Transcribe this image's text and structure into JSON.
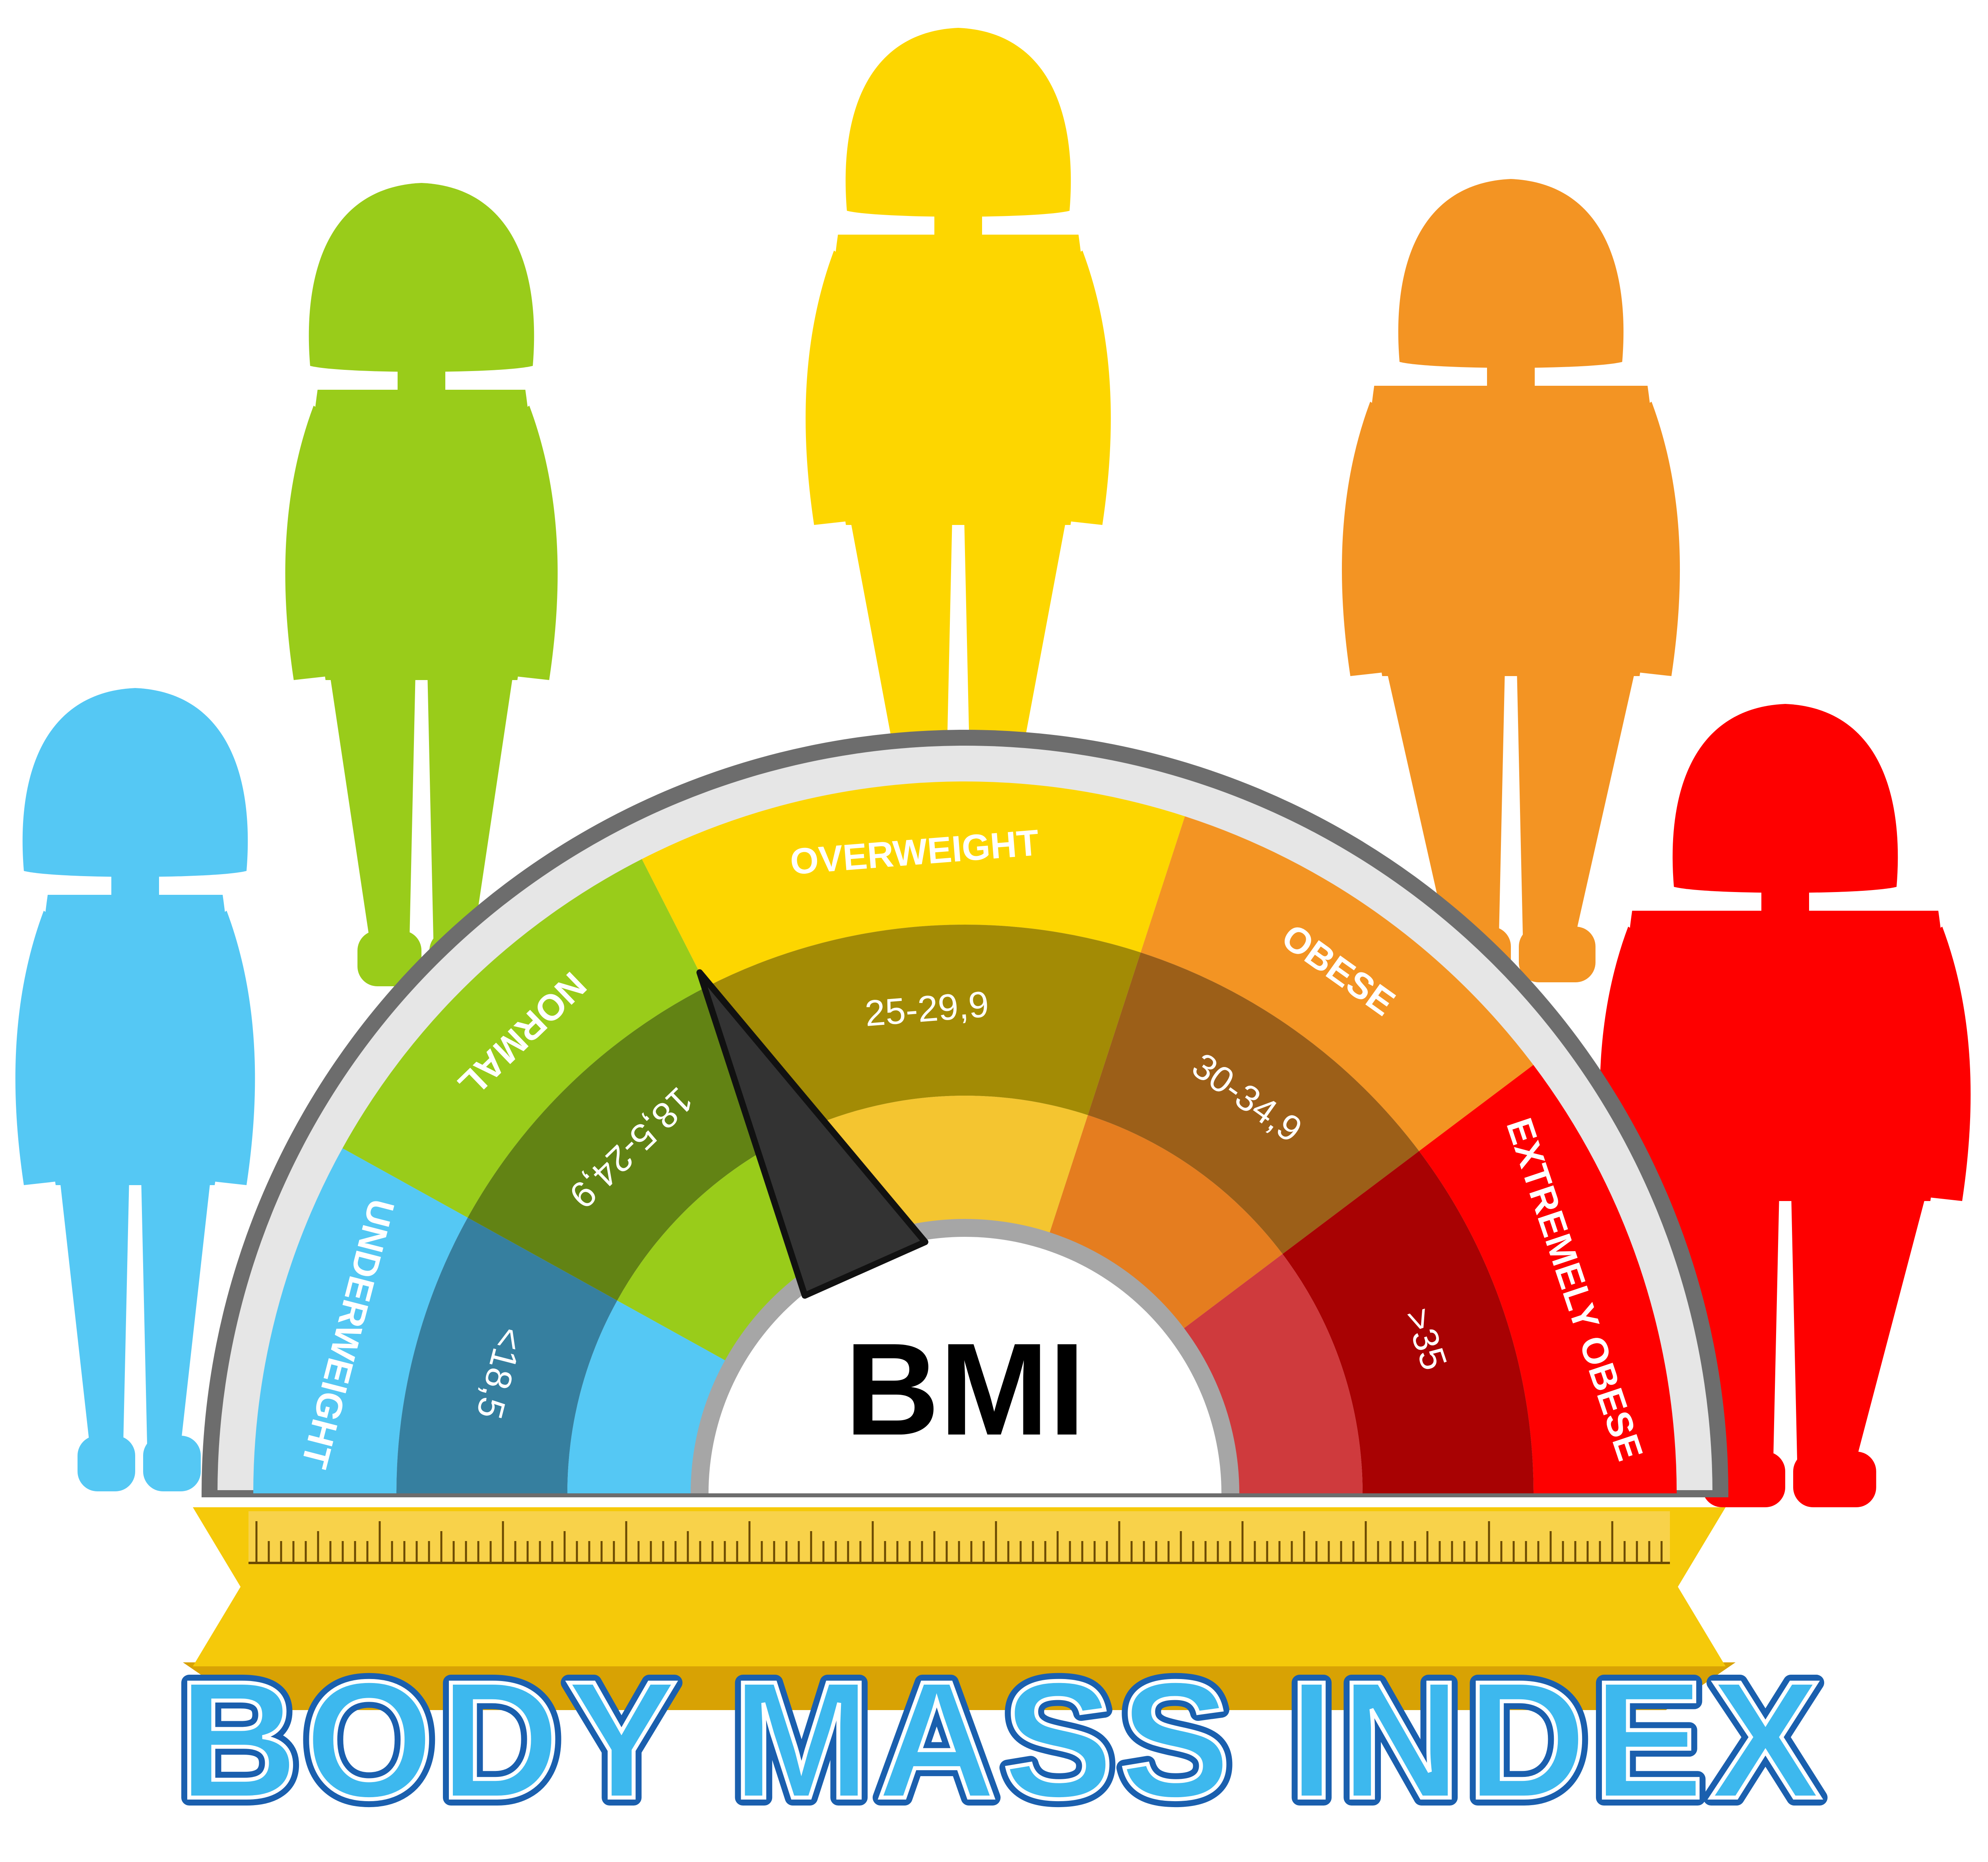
{
  "title": "BODY MASS INDEX",
  "center_label": "BMI",
  "categories": [
    {
      "id": "underweight",
      "label": "UNDERWEIGHT",
      "range": "<18,5",
      "outer": "#55c8f4",
      "mid": "#367f9f",
      "inner": "#55c8f4"
    },
    {
      "id": "normal",
      "label": "NORMAL",
      "range": "18,5-24,9",
      "outer": "#99cc1a",
      "mid": "#628314",
      "inner": "#99cc1a"
    },
    {
      "id": "overweight",
      "label": "OVERWEIGHT",
      "range": "25-29,9",
      "outer": "#fdd600",
      "mid": "#a38b05",
      "inner": "#f4c530"
    },
    {
      "id": "obese",
      "label": "OBESE",
      "range": "30-34,9",
      "outer": "#f39423",
      "mid": "#9c5f18",
      "inner": "#e57d1f"
    },
    {
      "id": "extremely",
      "label": "EXTREMELY OBESE",
      "range": ">35",
      "outer": "#fe0000",
      "mid": "#a80203",
      "inner": "#cf3a3d"
    }
  ],
  "figures": [
    {
      "id": "underweight",
      "color": "#55c8f4",
      "build": 0.0
    },
    {
      "id": "normal",
      "color": "#99cc1a",
      "build": 0.25
    },
    {
      "id": "overweight",
      "color": "#fdd600",
      "build": 0.5
    },
    {
      "id": "obese",
      "color": "#f39423",
      "build": 0.75
    },
    {
      "id": "extremely",
      "color": "#fe0000",
      "build": 1.0
    }
  ],
  "needle_value": "normal-overweight boundary",
  "colors": {
    "frame": "#6d6d6d",
    "frame_inner": "#e6e6e6",
    "ribbon": "#f5c90a",
    "ribbon_dark": "#d8a204",
    "title_fill": "#3db8ee",
    "title_outline": "#1a5fae",
    "needle": "#333333"
  }
}
